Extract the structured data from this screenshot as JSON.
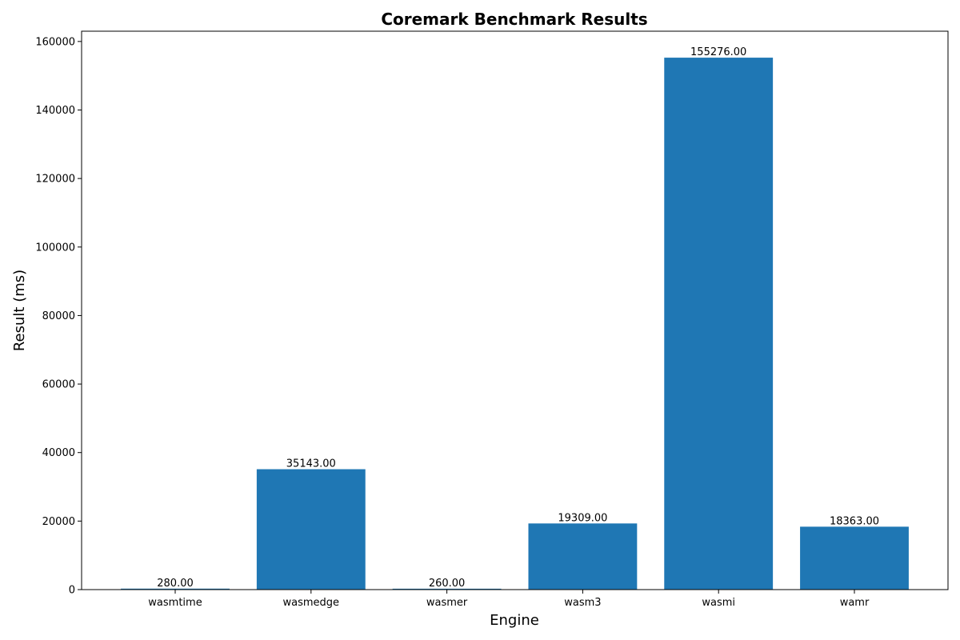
{
  "chart_data": {
    "type": "bar",
    "title": "Coremark Benchmark Results",
    "xlabel": "Engine",
    "ylabel": "Result (ms)",
    "categories": [
      "wasmtime",
      "wasmedge",
      "wasmer",
      "wasm3",
      "wasmi",
      "wamr"
    ],
    "values": [
      280,
      35143,
      260,
      19309,
      155276,
      18363
    ],
    "data_labels": [
      "280.00",
      "35143.00",
      "260.00",
      "19309.00",
      "155276.00",
      "18363.00"
    ],
    "ylim": [
      0,
      163000
    ],
    "yticks": [
      0,
      20000,
      40000,
      60000,
      80000,
      100000,
      120000,
      140000,
      160000
    ],
    "ytick_labels": [
      "0",
      "20000",
      "40000",
      "60000",
      "80000",
      "100000",
      "120000",
      "140000",
      "160000"
    ],
    "grid": false,
    "legend": "none",
    "bar_color": "#1f77b4"
  }
}
